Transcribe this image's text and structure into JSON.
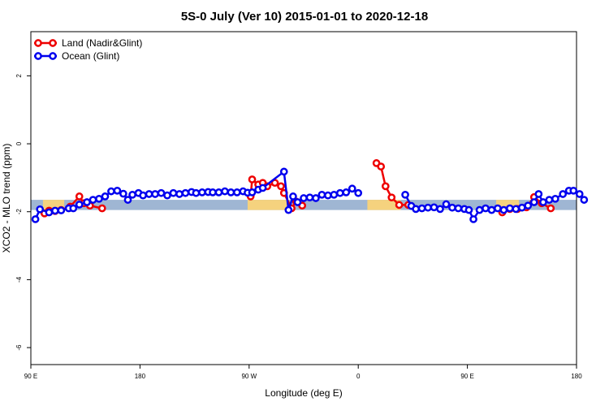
{
  "chart_data": {
    "type": "line",
    "title": "5S-0 July (Ver 10)   2015-01-01 to 2020-12-18",
    "xlabel": "Longitude (deg E)",
    "ylabel": "XCO2 - MLO trend (ppm)",
    "xlim": [
      90,
      450
    ],
    "ylim": [
      -6.5,
      3.3
    ],
    "x_ticks": [
      {
        "value": 90,
        "label": "90 E"
      },
      {
        "value": 162,
        "label": "180"
      },
      {
        "value": 234,
        "label": "90 W"
      },
      {
        "value": 306,
        "label": "0"
      },
      {
        "value": 378,
        "label": "90 E"
      },
      {
        "value": 450,
        "label": "180"
      }
    ],
    "y_ticks": [
      {
        "value": 2,
        "label": "2"
      },
      {
        "value": 0,
        "label": "0"
      },
      {
        "value": -2,
        "label": "-2"
      },
      {
        "value": -4,
        "label": "-4"
      },
      {
        "value": -6,
        "label": "-6"
      }
    ],
    "band": {
      "ymin": -1.95,
      "ymax": -1.65,
      "color": "#9fb6d3",
      "land_color": "#f5d27e",
      "land_segments": [
        [
          98,
          112
        ],
        [
          233,
          260
        ],
        [
          312,
          334
        ],
        [
          397,
          412
        ]
      ]
    },
    "legend": {
      "placement": "top-left"
    },
    "series": [
      {
        "name": "Land (Nadir&Glint)",
        "color": "#ee0000",
        "segments": [
          [
            [
              99,
              -2.05
            ],
            [
              102,
              -1.97
            ],
            [
              106,
              -1.98
            ],
            [
              110,
              -1.95
            ],
            [
              116,
              -1.85
            ],
            [
              122,
              -1.55
            ],
            [
              125,
              -1.75
            ],
            [
              129,
              -1.82
            ],
            [
              137,
              -1.9
            ]
          ],
          [
            [
              235,
              -1.55
            ],
            [
              236,
              -1.05
            ],
            [
              240,
              -1.2
            ],
            [
              243,
              -1.15
            ],
            [
              246,
              -1.25
            ],
            [
              251,
              -1.15
            ],
            [
              255,
              -1.25
            ],
            [
              257,
              -1.45
            ],
            [
              262,
              -1.9
            ],
            [
              265,
              -1.7
            ],
            [
              269,
              -1.82
            ]
          ],
          [
            [
              318,
              -0.57
            ],
            [
              321,
              -0.67
            ],
            [
              324,
              -1.25
            ],
            [
              328,
              -1.58
            ],
            [
              333,
              -1.8
            ],
            [
              339,
              -1.8
            ]
          ],
          [
            [
              401,
              -2.02
            ],
            [
              406,
              -1.92
            ],
            [
              411,
              -1.92
            ],
            [
              417,
              -1.87
            ],
            [
              422,
              -1.57
            ],
            [
              427,
              -1.75
            ],
            [
              433,
              -1.9
            ]
          ]
        ]
      },
      {
        "name": "Ocean (Glint)",
        "color": "#0000ee",
        "segments": [
          [
            [
              93,
              -2.22
            ],
            [
              96,
              -1.93
            ],
            [
              102,
              -2.02
            ],
            [
              106,
              -1.97
            ],
            [
              110,
              -1.96
            ],
            [
              115,
              -1.9
            ],
            [
              118,
              -1.9
            ],
            [
              122,
              -1.79
            ],
            [
              127,
              -1.72
            ],
            [
              131,
              -1.65
            ],
            [
              135,
              -1.62
            ],
            [
              139,
              -1.55
            ],
            [
              143,
              -1.4
            ],
            [
              147,
              -1.38
            ],
            [
              151,
              -1.47
            ],
            [
              154,
              -1.65
            ],
            [
              157,
              -1.5
            ],
            [
              161,
              -1.45
            ],
            [
              164,
              -1.52
            ],
            [
              168,
              -1.48
            ],
            [
              172,
              -1.48
            ],
            [
              176,
              -1.45
            ],
            [
              180,
              -1.52
            ],
            [
              184,
              -1.45
            ],
            [
              188,
              -1.48
            ],
            [
              192,
              -1.45
            ],
            [
              196,
              -1.42
            ],
            [
              199,
              -1.45
            ],
            [
              203,
              -1.43
            ],
            [
              207,
              -1.42
            ],
            [
              210,
              -1.43
            ],
            [
              214,
              -1.43
            ],
            [
              218,
              -1.4
            ],
            [
              222,
              -1.43
            ],
            [
              226,
              -1.43
            ],
            [
              230,
              -1.4
            ],
            [
              233,
              -1.44
            ],
            [
              236,
              -1.43
            ],
            [
              240,
              -1.35
            ],
            [
              243,
              -1.3
            ],
            [
              257,
              -0.82
            ],
            [
              260,
              -1.95
            ],
            [
              263,
              -1.55
            ],
            [
              266,
              -1.72
            ],
            [
              270,
              -1.6
            ],
            [
              274,
              -1.58
            ],
            [
              278,
              -1.6
            ],
            [
              282,
              -1.5
            ],
            [
              286,
              -1.52
            ],
            [
              290,
              -1.5
            ],
            [
              294,
              -1.45
            ],
            [
              298,
              -1.43
            ],
            [
              302,
              -1.32
            ],
            [
              306,
              -1.45
            ]
          ],
          [
            [
              337,
              -1.5
            ],
            [
              341,
              -1.83
            ],
            [
              344,
              -1.92
            ],
            [
              348,
              -1.9
            ],
            [
              352,
              -1.88
            ],
            [
              356,
              -1.87
            ],
            [
              360,
              -1.92
            ],
            [
              364,
              -1.78
            ],
            [
              368,
              -1.88
            ],
            [
              372,
              -1.9
            ],
            [
              376,
              -1.92
            ],
            [
              379,
              -1.95
            ],
            [
              382,
              -2.22
            ],
            [
              386,
              -1.95
            ],
            [
              390,
              -1.9
            ],
            [
              394,
              -1.95
            ],
            [
              398,
              -1.9
            ],
            [
              402,
              -1.95
            ],
            [
              406,
              -1.9
            ],
            [
              410,
              -1.92
            ],
            [
              414,
              -1.88
            ],
            [
              418,
              -1.82
            ],
            [
              422,
              -1.72
            ],
            [
              425,
              -1.48
            ],
            [
              428,
              -1.72
            ],
            [
              432,
              -1.65
            ],
            [
              436,
              -1.62
            ],
            [
              441,
              -1.48
            ],
            [
              445,
              -1.38
            ],
            [
              448,
              -1.38
            ],
            [
              452,
              -1.48
            ],
            [
              455,
              -1.65
            ]
          ]
        ]
      }
    ]
  }
}
